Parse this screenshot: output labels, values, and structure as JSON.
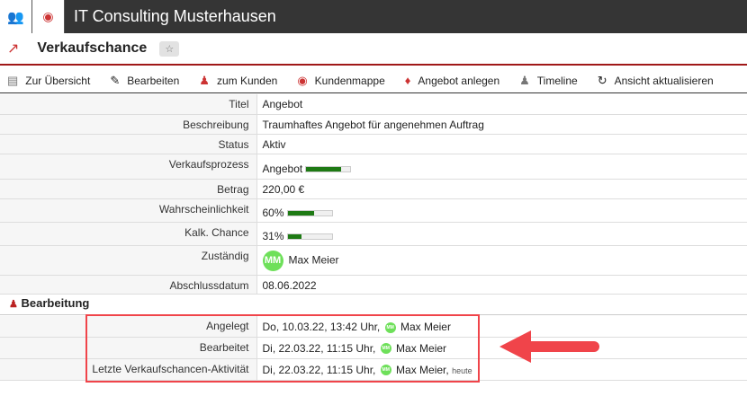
{
  "app": {
    "title": "IT Consulting Musterhausen",
    "tabs": [
      {
        "icon": "contacts-icon"
      },
      {
        "icon": "briefcase-icon"
      }
    ]
  },
  "page": {
    "title": "Verkaufschance",
    "icon": "chart-line-icon"
  },
  "toolbar": [
    {
      "label": "Zur Übersicht",
      "icon": "list-icon"
    },
    {
      "label": "Bearbeiten",
      "icon": "pencil-icon"
    },
    {
      "label": "zum Kunden",
      "icon": "customer-icon"
    },
    {
      "label": "Kundenmappe",
      "icon": "folder-icon"
    },
    {
      "label": "Angebot anlegen",
      "icon": "tag-icon"
    },
    {
      "label": "Timeline",
      "icon": "timeline-icon"
    },
    {
      "label": "Ansicht aktualisieren",
      "icon": "refresh-icon"
    }
  ],
  "fields": {
    "titel": {
      "label": "Titel",
      "value": "Angebot"
    },
    "beschreibung": {
      "label": "Beschreibung",
      "value": "Traumhaftes Angebot für angenehmen Auftrag"
    },
    "status": {
      "label": "Status",
      "value": "Aktiv"
    },
    "prozess": {
      "label": "Verkaufsprozess",
      "value": "Angebot",
      "progress": 80
    },
    "betrag": {
      "label": "Betrag",
      "value": "220,00 €"
    },
    "wahrscheinlichkeit": {
      "label": "Wahrscheinlichkeit",
      "value": "60%",
      "progress": 60
    },
    "chance": {
      "label": "Kalk. Chance",
      "value": "31%",
      "progress": 31
    },
    "zustaendig": {
      "label": "Zuständig",
      "initials": "MM",
      "value": "Max Meier"
    },
    "abschluss": {
      "label": "Abschlussdatum",
      "value": "08.06.2022"
    }
  },
  "section": {
    "title": "Bearbeitung"
  },
  "history": [
    {
      "label": "Angelegt",
      "date": "Do, 10.03.22, 13:42 Uhr,",
      "initials": "MM",
      "user": "Max Meier",
      "note": ""
    },
    {
      "label": "Bearbeitet",
      "date": "Di, 22.03.22, 11:15 Uhr,",
      "initials": "MM",
      "user": "Max Meier",
      "note": ""
    },
    {
      "label": "Letzte Verkaufschancen-Aktivität",
      "date": "Di, 22.03.22, 11:15 Uhr,",
      "initials": "MM",
      "user": "Max Meier,",
      "note": "heute"
    }
  ],
  "colors": {
    "accent": "#a01818",
    "progress": "#1e7a14",
    "highlight": "#f0444a"
  }
}
